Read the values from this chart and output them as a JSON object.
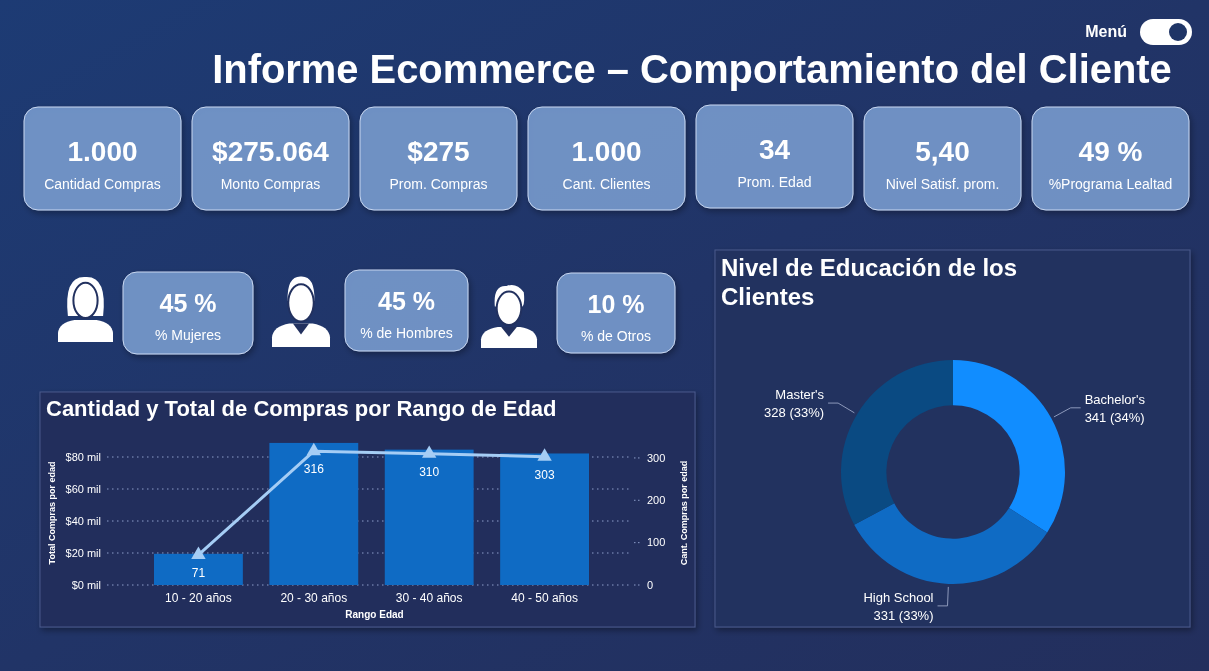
{
  "chart_data": [
    {
      "type": "other",
      "title": "Informe Ecommerce – Comportamiento del Cliente",
      "annotations": [
        "Menú"
      ]
    },
    {
      "type": "other",
      "annotations": [
        "1.000",
        "Cantidad Compras",
        "$275.064",
        "Monto Compras",
        "$275",
        "Prom. Compras",
        "1.000",
        "Cant. Clientes",
        "34",
        "Prom. Edad",
        "5,40",
        "Nivel Satisf. prom.",
        "49 %",
        "%Programa Lealtad"
      ]
    },
    {
      "type": "other",
      "annotations": [
        "45 %",
        "% Mujeres",
        "45 %",
        "% de Hombres",
        "10 %",
        "% de Otros"
      ]
    },
    {
      "type": "bar",
      "title": "Cantidad y Total de Compras por Rango de Edad",
      "categories": [
        "10 - 20 años",
        "20 - 30 años",
        "30 - 40 años",
        "40 - 50 años"
      ],
      "xlabel": "Rango Edad",
      "ylabel": "Total Compras por edad",
      "y2label": "Cant. Compras por edad",
      "series": [
        {
          "type": "bar",
          "color": "#0f6bc4",
          "values": [
            19.5,
            88.8,
            84.6,
            82.2
          ]
        },
        {
          "type": "line",
          "axis": "y2",
          "color": "#a5cdf5",
          "values": [
            71,
            316,
            310,
            303
          ],
          "value_labels": [
            "71",
            "316",
            "310",
            "303"
          ]
        }
      ],
      "ylim": [
        0,
        90
      ],
      "yticks": [
        {
          "value": 0,
          "label": "$0 mil"
        },
        {
          "value": 20,
          "label": "$20 mil"
        },
        {
          "value": 40,
          "label": "$40 mil"
        },
        {
          "value": 60,
          "label": "$60 mil"
        },
        {
          "value": 80,
          "label": "$80 mil"
        }
      ],
      "y2lim": [
        0,
        340
      ],
      "y2ticks": [
        0,
        100,
        200,
        300
      ],
      "grid": "y",
      "marker": "triangle",
      "line_style": "solid"
    },
    {
      "type": "donut",
      "title": "Nivel de Educación de los Clientes",
      "categories": [
        "Bachelor's",
        "High School",
        "Master's"
      ],
      "values": [
        341,
        331,
        328
      ],
      "colors": [
        "#118dff",
        "#0f6bc4",
        "#0a4a82"
      ],
      "value_labels": [
        "341 (34%)",
        "331 (33%)",
        "328 (33%)"
      ]
    }
  ]
}
